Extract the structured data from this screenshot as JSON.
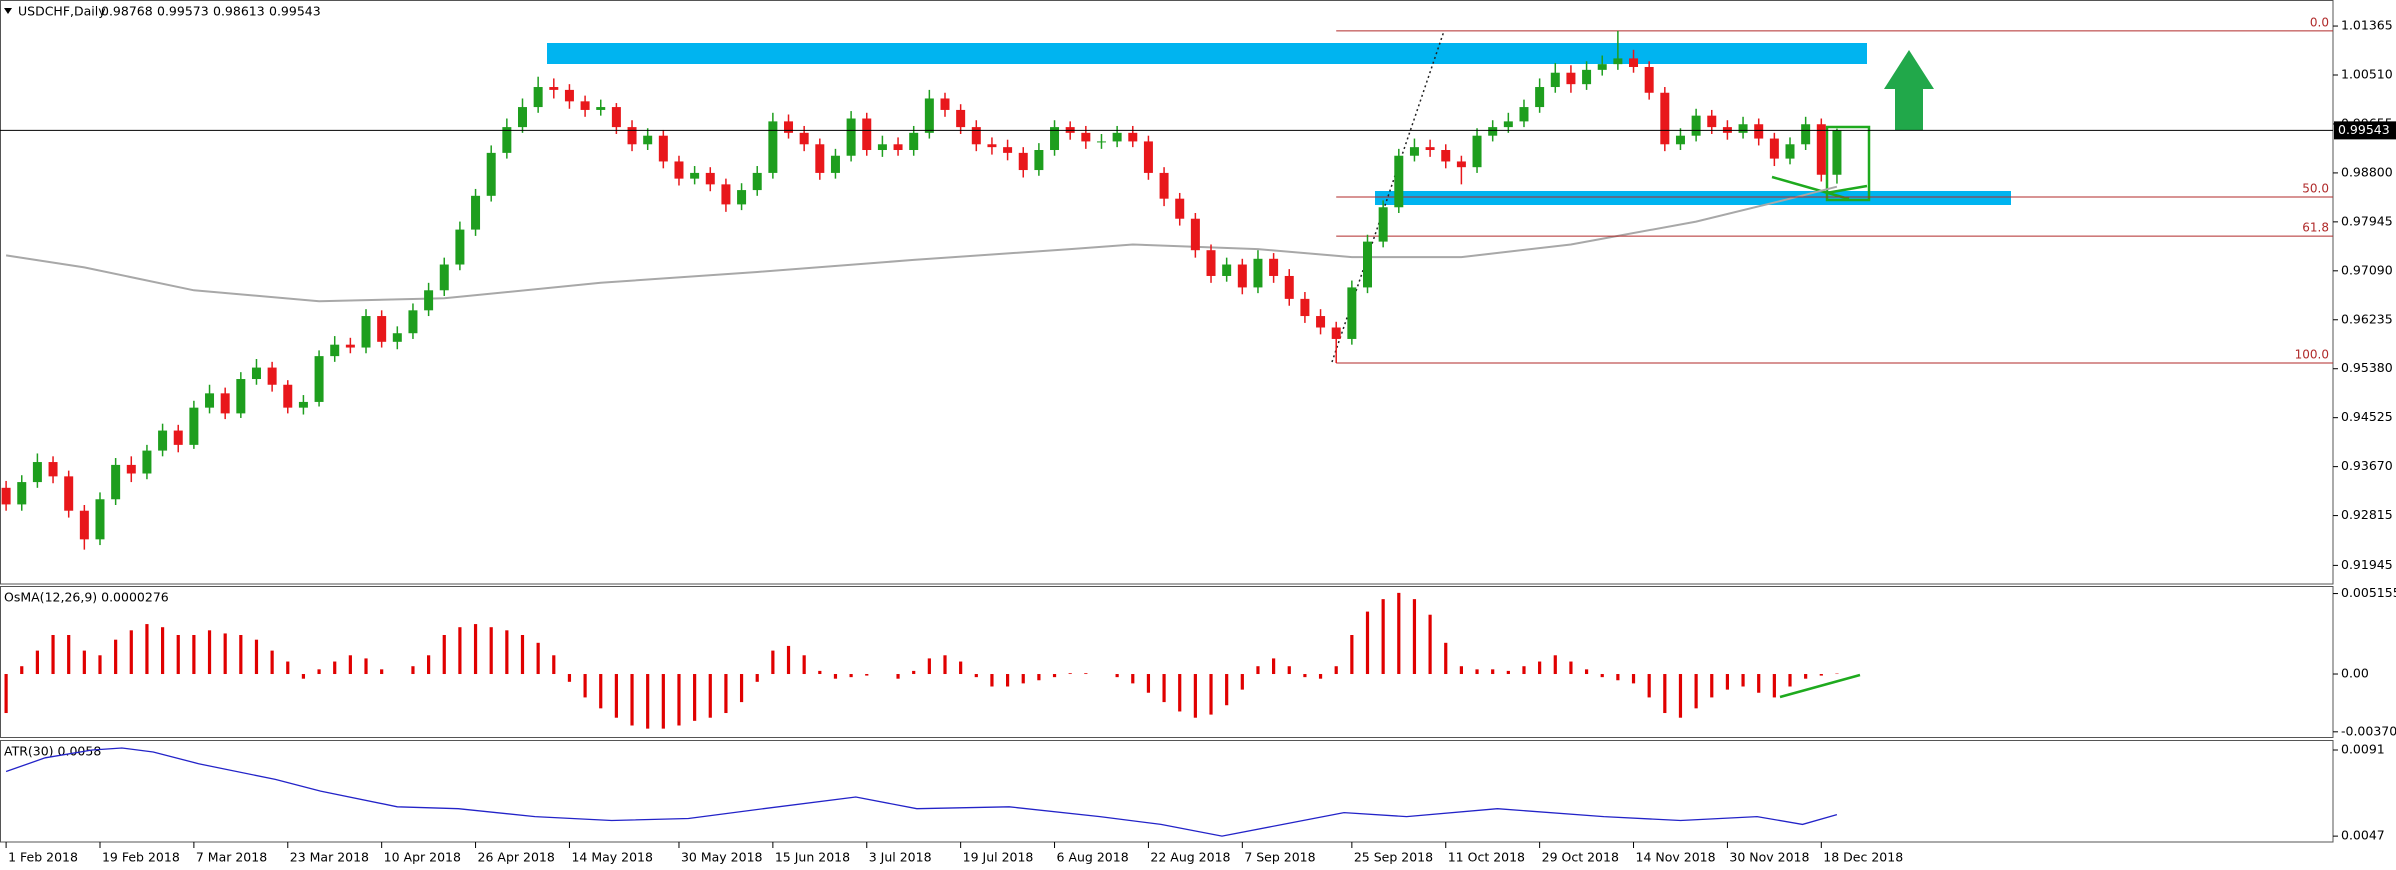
{
  "chart_data": [
    {
      "type": "candlestick",
      "title": "USDCHF,Daily",
      "xlim": [
        -0.39,
        148.7
      ],
      "ylim": [
        0.9162,
        1.0182
      ],
      "yticks": [
        1.01365,
        {
          "value": 1.0051,
          "label": "1.00510"
        },
        0.99655,
        {
          "value": 0.988,
          "label": "0.98800"
        },
        0.97945,
        {
          "value": 0.9709,
          "label": "0.97090"
        },
        0.96235,
        {
          "value": 0.9538,
          "label": "0.95380"
        },
        0.94525,
        {
          "value": 0.9367,
          "label": "0.93670"
        },
        0.92815,
        0.91945
      ],
      "xticks": [
        {
          "value": 0,
          "label": "1 Feb 2018"
        },
        {
          "value": 6,
          "label": "19 Feb 2018"
        },
        {
          "value": 12,
          "label": "7 Mar 2018"
        },
        {
          "value": 18,
          "label": "23 Mar 2018"
        },
        {
          "value": 24,
          "label": "10 Apr 2018"
        },
        {
          "value": 30,
          "label": "26 Apr 2018"
        },
        {
          "value": 36,
          "label": "14 May 2018"
        },
        {
          "value": 43,
          "label": "30 May 2018"
        },
        {
          "value": 49,
          "label": "15 Jun 2018"
        },
        {
          "value": 55,
          "label": "3 Jul 2018"
        },
        {
          "value": 61,
          "label": "19 Jul 2018"
        },
        {
          "value": 67,
          "label": "6 Aug 2018"
        },
        {
          "value": 73,
          "label": "22 Aug 2018"
        },
        {
          "value": 79,
          "label": "7 Sep 2018"
        },
        {
          "value": 86,
          "label": "25 Sep 2018"
        },
        {
          "value": 92,
          "label": "11 Oct 2018"
        },
        {
          "value": 98,
          "label": "29 Oct 2018"
        },
        {
          "value": 104,
          "label": "14 Nov 2018"
        },
        {
          "value": 110,
          "label": "30 Nov 2018"
        },
        {
          "value": 116,
          "label": "18 Dec 2018"
        }
      ],
      "up_color": "#1e9e1e",
      "down_color": "#e8171b",
      "candles": [
        [
          0.933,
          0.9342,
          0.929,
          0.9301
        ],
        [
          0.9301,
          0.9352,
          0.929,
          0.934
        ],
        [
          0.934,
          0.939,
          0.933,
          0.9375
        ],
        [
          0.9375,
          0.9385,
          0.9338,
          0.935
        ],
        [
          0.935,
          0.936,
          0.9278,
          0.929
        ],
        [
          0.929,
          0.93,
          0.9222,
          0.924
        ],
        [
          0.924,
          0.9322,
          0.923,
          0.931
        ],
        [
          0.931,
          0.9382,
          0.93,
          0.937
        ],
        [
          0.937,
          0.9385,
          0.934,
          0.9355
        ],
        [
          0.9355,
          0.9405,
          0.9345,
          0.9395
        ],
        [
          0.9395,
          0.9442,
          0.9385,
          0.943
        ],
        [
          0.943,
          0.944,
          0.9392,
          0.9405
        ],
        [
          0.9405,
          0.9482,
          0.9398,
          0.947
        ],
        [
          0.947,
          0.951,
          0.946,
          0.9495
        ],
        [
          0.9495,
          0.9505,
          0.945,
          0.946
        ],
        [
          0.946,
          0.9532,
          0.9452,
          0.952
        ],
        [
          0.952,
          0.9555,
          0.951,
          0.954
        ],
        [
          0.954,
          0.955,
          0.9498,
          0.951
        ],
        [
          0.951,
          0.9518,
          0.946,
          0.947
        ],
        [
          0.947,
          0.9492,
          0.9458,
          0.948
        ],
        [
          0.948,
          0.957,
          0.9472,
          0.956
        ],
        [
          0.956,
          0.9595,
          0.955,
          0.958
        ],
        [
          0.958,
          0.9592,
          0.9565,
          0.9575
        ],
        [
          0.9575,
          0.9642,
          0.9565,
          0.963
        ],
        [
          0.963,
          0.964,
          0.9575,
          0.9585
        ],
        [
          0.9585,
          0.9612,
          0.9572,
          0.96
        ],
        [
          0.96,
          0.9652,
          0.959,
          0.964
        ],
        [
          0.964,
          0.9688,
          0.963,
          0.9675
        ],
        [
          0.9675,
          0.9732,
          0.9665,
          0.972
        ],
        [
          0.972,
          0.9795,
          0.971,
          0.9781
        ],
        [
          0.9781,
          0.9852,
          0.977,
          0.984
        ],
        [
          0.984,
          0.9928,
          0.983,
          0.9915
        ],
        [
          0.9915,
          0.9975,
          0.9905,
          0.996
        ],
        [
          0.996,
          1.001,
          0.995,
          0.9995
        ],
        [
          0.9995,
          1.0048,
          0.9985,
          1.003
        ],
        [
          1.003,
          1.0045,
          1.001,
          1.0025
        ],
        [
          1.0025,
          1.0035,
          0.9992,
          1.0005
        ],
        [
          1.0005,
          1.0015,
          0.9978,
          0.999
        ],
        [
          0.999,
          1.0008,
          0.998,
          0.9995
        ],
        [
          0.9995,
          1.0002,
          0.9948,
          0.996
        ],
        [
          0.996,
          0.9972,
          0.9918,
          0.993
        ],
        [
          0.993,
          0.9958,
          0.992,
          0.9945
        ],
        [
          0.9945,
          0.9955,
          0.9888,
          0.99
        ],
        [
          0.99,
          0.991,
          0.9858,
          0.987
        ],
        [
          0.987,
          0.9892,
          0.986,
          0.988
        ],
        [
          0.988,
          0.989,
          0.9848,
          0.986
        ],
        [
          0.986,
          0.987,
          0.9812,
          0.9825
        ],
        [
          0.9825,
          0.9862,
          0.9815,
          0.985
        ],
        [
          0.985,
          0.9892,
          0.984,
          0.988
        ],
        [
          0.988,
          0.9985,
          0.987,
          0.997
        ],
        [
          0.997,
          0.9982,
          0.994,
          0.995
        ],
        [
          0.995,
          0.9962,
          0.9918,
          0.993
        ],
        [
          0.993,
          0.994,
          0.9868,
          0.988
        ],
        [
          0.988,
          0.9922,
          0.987,
          0.991
        ],
        [
          0.991,
          0.9988,
          0.99,
          0.9975
        ],
        [
          0.9975,
          0.9985,
          0.991,
          0.992
        ],
        [
          0.992,
          0.9945,
          0.9908,
          0.993
        ],
        [
          0.993,
          0.9942,
          0.991,
          0.992
        ],
        [
          0.992,
          0.9962,
          0.991,
          0.995
        ],
        [
          0.995,
          1.0025,
          0.994,
          1.001
        ],
        [
          1.001,
          1.002,
          0.9978,
          0.999
        ],
        [
          0.999,
          1.0,
          0.9948,
          0.996
        ],
        [
          0.996,
          0.9972,
          0.9918,
          0.993
        ],
        [
          0.993,
          0.9942,
          0.9912,
          0.9925
        ],
        [
          0.9925,
          0.9938,
          0.9902,
          0.9915
        ],
        [
          0.9915,
          0.9925,
          0.9872,
          0.9885
        ],
        [
          0.9885,
          0.9932,
          0.9875,
          0.992
        ],
        [
          0.992,
          0.9972,
          0.991,
          0.996
        ],
        [
          0.996,
          0.997,
          0.9938,
          0.995
        ],
        [
          0.995,
          0.9962,
          0.9922,
          0.9935
        ],
        [
          0.9935,
          0.9948,
          0.9922,
          0.9935
        ],
        [
          0.9935,
          0.9962,
          0.9925,
          0.995
        ],
        [
          0.995,
          0.9962,
          0.9925,
          0.9935
        ],
        [
          0.9935,
          0.9945,
          0.9868,
          0.988
        ],
        [
          0.988,
          0.989,
          0.9822,
          0.9835
        ],
        [
          0.9835,
          0.9845,
          0.9788,
          0.98
        ],
        [
          0.98,
          0.981,
          0.9732,
          0.9745
        ],
        [
          0.9745,
          0.9755,
          0.9688,
          0.97
        ],
        [
          0.97,
          0.9732,
          0.969,
          0.972
        ],
        [
          0.972,
          0.973,
          0.9668,
          0.968
        ],
        [
          0.968,
          0.9745,
          0.967,
          0.973
        ],
        [
          0.973,
          0.974,
          0.9688,
          0.97
        ],
        [
          0.97,
          0.9712,
          0.9648,
          0.966
        ],
        [
          0.966,
          0.9672,
          0.9618,
          0.963
        ],
        [
          0.963,
          0.9642,
          0.9598,
          0.961
        ],
        [
          0.961,
          0.962,
          0.9548,
          0.959
        ],
        [
          0.959,
          0.9692,
          0.958,
          0.968
        ],
        [
          0.968,
          0.9772,
          0.967,
          0.976
        ],
        [
          0.976,
          0.9832,
          0.975,
          0.982
        ],
        [
          0.982,
          0.9922,
          0.981,
          0.991
        ],
        [
          0.991,
          0.994,
          0.99,
          0.9925
        ],
        [
          0.9925,
          0.9938,
          0.9908,
          0.992
        ],
        [
          0.992,
          0.993,
          0.9888,
          0.99
        ],
        [
          0.99,
          0.991,
          0.986,
          0.989
        ],
        [
          0.989,
          0.9958,
          0.988,
          0.9945
        ],
        [
          0.9945,
          0.9972,
          0.9935,
          0.996
        ],
        [
          0.996,
          0.9985,
          0.995,
          0.997
        ],
        [
          0.997,
          1.0008,
          0.996,
          0.9995
        ],
        [
          0.9995,
          1.0045,
          0.9985,
          1.003
        ],
        [
          1.003,
          1.0072,
          1.002,
          1.0055
        ],
        [
          1.0055,
          1.0068,
          1.002,
          1.0035
        ],
        [
          1.0035,
          1.0075,
          1.0025,
          1.006
        ],
        [
          1.006,
          1.0085,
          1.005,
          1.007
        ],
        [
          1.007,
          1.0128,
          1.006,
          1.008
        ],
        [
          1.008,
          1.0095,
          1.0055,
          1.0065
        ],
        [
          1.0065,
          1.0075,
          1.0008,
          1.002
        ],
        [
          1.002,
          1.003,
          0.9918,
          0.993
        ],
        [
          0.993,
          0.9958,
          0.992,
          0.9945
        ],
        [
          0.9945,
          0.9992,
          0.9935,
          0.998
        ],
        [
          0.998,
          0.999,
          0.9948,
          0.996
        ],
        [
          0.996,
          0.9972,
          0.9938,
          0.995
        ],
        [
          0.995,
          0.9978,
          0.994,
          0.9965
        ],
        [
          0.9965,
          0.9975,
          0.9928,
          0.994
        ],
        [
          0.994,
          0.995,
          0.9892,
          0.9905
        ],
        [
          0.9905,
          0.9942,
          0.9895,
          0.993
        ],
        [
          0.993,
          0.9978,
          0.992,
          0.9965
        ],
        [
          0.9965,
          0.9975,
          0.9865,
          0.98768
        ],
        [
          0.98768,
          0.99573,
          0.98613,
          0.99543
        ]
      ],
      "moving_average": {
        "color": "#a8a8a8",
        "x": [
          0,
          5,
          12,
          20,
          28,
          38,
          48,
          58,
          68,
          72,
          80,
          86,
          93,
          100,
          108,
          114,
          117
        ],
        "values": [
          0.9736,
          0.9715,
          0.9675,
          0.9656,
          0.9661,
          0.9688,
          0.9707,
          0.9728,
          0.9747,
          0.9755,
          0.9747,
          0.9733,
          0.9733,
          0.9755,
          0.9795,
          0.9835,
          0.9856
        ]
      },
      "fib_color": "#b02a2a",
      "fib_levels": [
        {
          "value": 0,
          "label": "0.0"
        },
        {
          "value": 50,
          "label": "50.0"
        },
        {
          "value": 61.8,
          "label": "61.8"
        },
        {
          "value": 100,
          "label": "100.0"
        }
      ]
    },
    {
      "type": "bar",
      "title": "OsMA(12,26,9) 0.0000276",
      "color": "#e00000",
      "ylim": [
        -0.0041,
        0.00564
      ],
      "yticks": [
        0.0051558,
        {
          "value": 0,
          "label": "0.00"
        },
        -0.0037039
      ],
      "values": [
        -0.0025,
        0.0005,
        0.0015,
        0.0025,
        0.0025,
        0.0015,
        0.0012,
        0.0022,
        0.0028,
        0.0032,
        0.003,
        0.0025,
        0.0025,
        0.0028,
        0.0026,
        0.0025,
        0.0022,
        0.0015,
        0.0008,
        -0.0003,
        0.0003,
        0.0008,
        0.0012,
        0.001,
        0.0003,
        0,
        0.0005,
        0.0012,
        0.0025,
        0.003,
        0.0032,
        0.003,
        0.0028,
        0.0025,
        0.002,
        0.0012,
        -0.0005,
        -0.0015,
        -0.0022,
        -0.0028,
        -0.0033,
        -0.0035,
        -0.0035,
        -0.0033,
        -0.003,
        -0.0028,
        -0.0025,
        -0.0018,
        -0.0005,
        0.0015,
        0.0018,
        0.0012,
        0.0002,
        -0.0003,
        -0.0002,
        -0.0001,
        0,
        -0.0003,
        0.0002,
        0.001,
        0.0012,
        0.0008,
        -0.0002,
        -0.0008,
        -0.0008,
        -0.0006,
        -0.0004,
        -0.0002,
        5e-05,
        5e-05,
        0,
        -0.0002,
        -0.0006,
        -0.0012,
        -0.0018,
        -0.0024,
        -0.0028,
        -0.0026,
        -0.002,
        -0.001,
        0.0005,
        0.001,
        0.0005,
        -0.0002,
        -0.0003,
        0.0005,
        0.0025,
        0.004,
        0.0048,
        0.0052,
        0.0048,
        0.0038,
        0.002,
        0.0005,
        0.0003,
        0.0003,
        0.0002,
        0.0005,
        0.0008,
        0.0012,
        0.0008,
        0.0003,
        -0.0002,
        -0.0004,
        -0.0006,
        -0.0015,
        -0.0025,
        -0.0028,
        -0.0022,
        -0.0015,
        -0.001,
        -0.0008,
        -0.0012,
        -0.0015,
        -0.0008,
        -0.0003,
        -0.0001,
        2.76e-05
      ]
    },
    {
      "type": "line",
      "title": "ATR(30) 0.0058",
      "color": "#2323c8",
      "ylim": [
        0.0044,
        0.00956
      ],
      "yticks": [
        0.0091,
        0.0047
      ],
      "x": [
        0,
        2.5,
        5.5,
        7.4,
        9.4,
        12.3,
        17.2,
        20.1,
        25,
        28.9,
        33.8,
        38.7,
        43.6,
        48.4,
        54.3,
        58.2,
        64.1,
        69.9,
        73.8,
        77.7,
        81.6,
        85.5,
        89.5,
        95.3,
        102.1,
        107,
        111.9,
        114.8,
        117
      ],
      "values": [
        0.008,
        0.0087,
        0.0091,
        0.0092,
        0.009,
        0.0084,
        0.0076,
        0.007,
        0.0062,
        0.0061,
        0.0057,
        0.0055,
        0.0056,
        0.0061,
        0.0067,
        0.0061,
        0.0062,
        0.0057,
        0.0053,
        0.0047,
        0.0053,
        0.0059,
        0.0057,
        0.0061,
        0.0057,
        0.0055,
        0.0057,
        0.0053,
        0.0058
      ]
    }
  ]
}
